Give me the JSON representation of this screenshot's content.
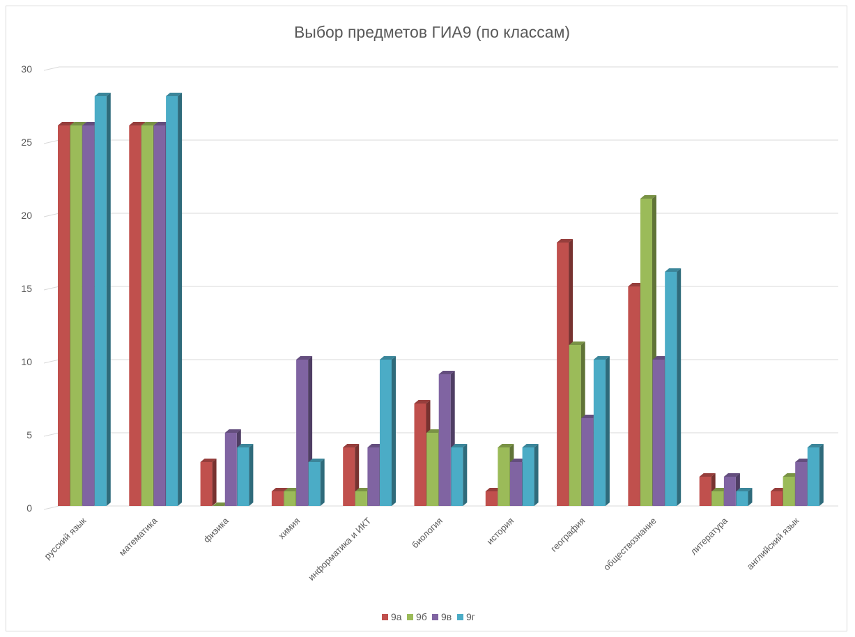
{
  "chart_data": {
    "type": "bar",
    "title": "Выбор предметов ГИА9 (по классам)",
    "xlabel": "",
    "ylabel": "",
    "ylim": [
      0,
      30
    ],
    "yticks": [
      0,
      5,
      10,
      15,
      20,
      25,
      30
    ],
    "grid": true,
    "legend_position": "bottom",
    "categories": [
      "русский язык",
      "математика",
      "физика",
      "химия",
      "информатика и ИКТ",
      "биология",
      "история",
      "география",
      "обществознание",
      "литература",
      "английский язык"
    ],
    "series": [
      {
        "name": "9а",
        "color": "#c0504d",
        "values": [
          26,
          26,
          3,
          1,
          4,
          7,
          1,
          18,
          15,
          2,
          1
        ]
      },
      {
        "name": "9б",
        "color": "#9bbb59",
        "values": [
          26,
          26,
          0,
          1,
          1,
          5,
          4,
          11,
          21,
          1,
          2
        ]
      },
      {
        "name": "9в",
        "color": "#8064a2",
        "values": [
          26,
          26,
          5,
          10,
          4,
          9,
          3,
          6,
          10,
          2,
          3
        ]
      },
      {
        "name": "9г",
        "color": "#4bacc6",
        "values": [
          28,
          28,
          4,
          3,
          10,
          4,
          4,
          10,
          16,
          1,
          4
        ]
      }
    ]
  }
}
